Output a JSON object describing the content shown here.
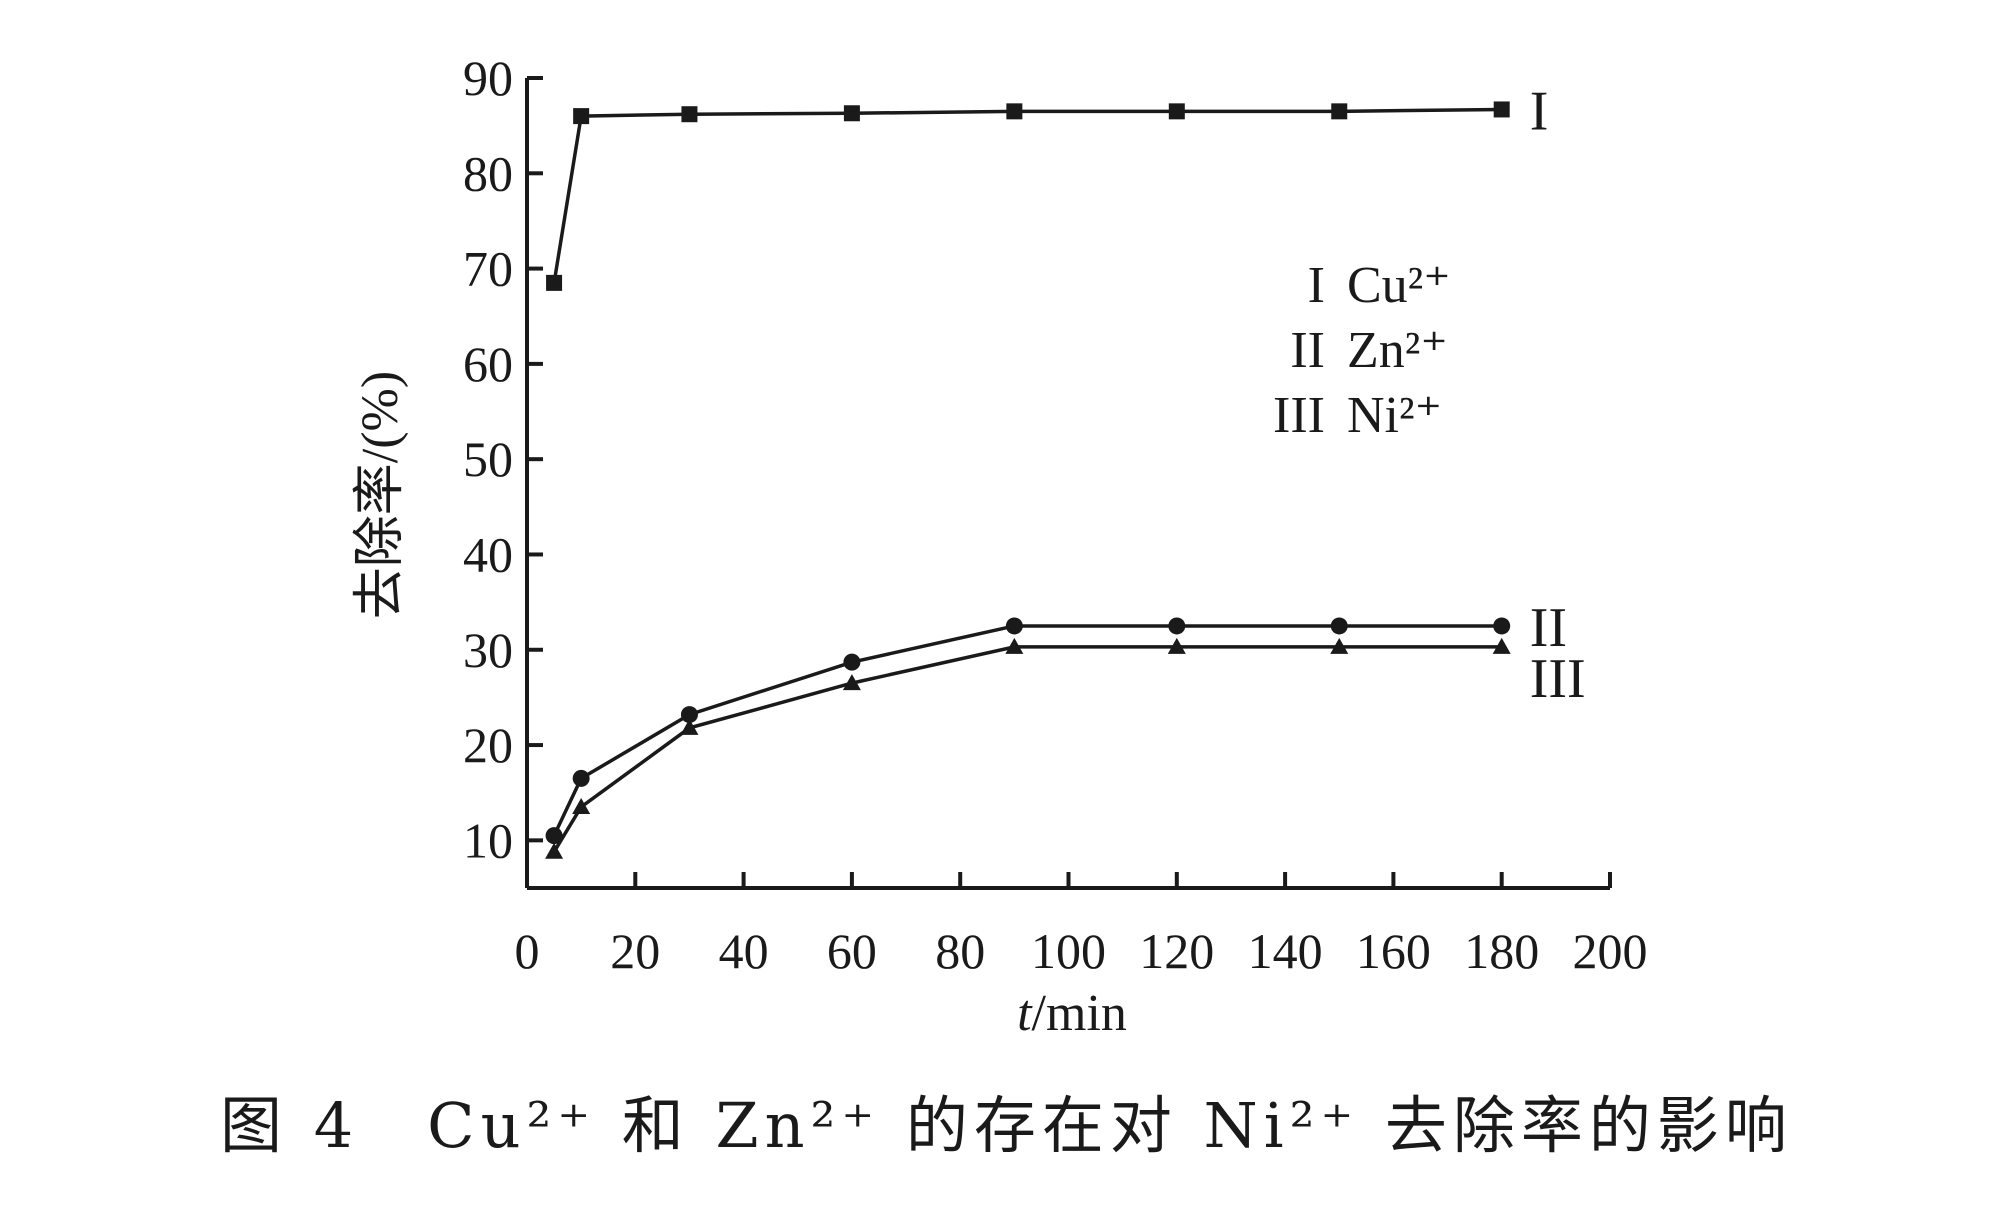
{
  "caption": "图 4　Cu²⁺ 和 Zn²⁺ 的存在对 Ni²⁺ 去除率的影响",
  "chart_data": {
    "type": "line",
    "xlabel": "t/min",
    "ylabel": "去除率/(%)",
    "xlim": [
      0,
      200
    ],
    "ylim": [
      5,
      90
    ],
    "x_ticks": [
      0,
      20,
      40,
      60,
      80,
      100,
      120,
      140,
      160,
      180,
      200
    ],
    "y_ticks": [
      10,
      20,
      30,
      40,
      50,
      60,
      70,
      80,
      90
    ],
    "grid": false,
    "legend_position": "top-right",
    "legend": [
      {
        "tag": "I",
        "label": "Cu²⁺"
      },
      {
        "tag": "II",
        "label": "Zn²⁺"
      },
      {
        "tag": "III",
        "label": "Ni²⁺"
      }
    ],
    "series": [
      {
        "tag": "I",
        "marker": "square",
        "x": [
          5,
          10,
          30,
          60,
          90,
          120,
          150,
          180
        ],
        "y": [
          68.5,
          86.0,
          86.2,
          86.3,
          86.5,
          86.5,
          86.5,
          86.7
        ]
      },
      {
        "tag": "II",
        "marker": "circle",
        "x": [
          5,
          10,
          30,
          60,
          90,
          120,
          150,
          180
        ],
        "y": [
          10.5,
          16.5,
          23.2,
          28.7,
          32.5,
          32.5,
          32.5,
          32.5
        ]
      },
      {
        "tag": "III",
        "marker": "triangle",
        "x": [
          5,
          10,
          30,
          60,
          90,
          120,
          150,
          180
        ],
        "y": [
          8.8,
          13.5,
          21.8,
          26.5,
          30.3,
          30.3,
          30.3,
          30.3
        ]
      }
    ]
  }
}
